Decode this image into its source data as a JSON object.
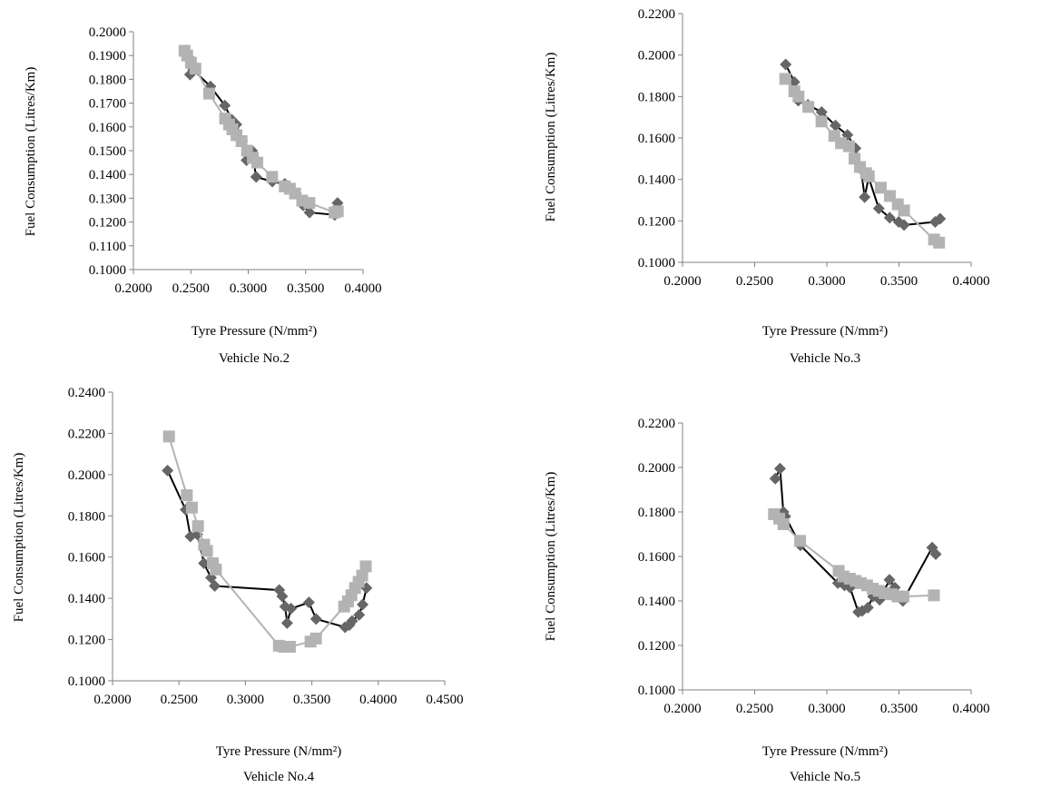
{
  "colors": {
    "series_observed": "#666666",
    "series_observed_line": "#000000",
    "series_fitted": "#b3b3b3",
    "axis": "#808080"
  },
  "chart_data": [
    {
      "type": "scatter",
      "title": "Vehicle No.2",
      "xlabel": "Tyre Pressure (N/mm²)",
      "ylabel": "Fuel Consumption (Litres/Km)",
      "xlim": [
        0.2,
        0.4
      ],
      "ylim": [
        0.1,
        0.2
      ],
      "x_ticks": [
        "0.2000",
        "0.2500",
        "0.3000",
        "0.3500",
        "0.4000"
      ],
      "y_ticks": [
        "0.1000",
        "0.1100",
        "0.1200",
        "0.1300",
        "0.1400",
        "0.1500",
        "0.1600",
        "0.1700",
        "0.1800",
        "0.1900",
        "0.2000"
      ],
      "grid": false,
      "series": [
        {
          "marker": "diamond",
          "x": [
            0.2448,
            0.2478,
            0.2493,
            0.2521,
            0.2671,
            0.2796,
            0.2857,
            0.2897,
            0.2947,
            0.2985,
            0.3033,
            0.3069,
            0.321,
            0.3318,
            0.3415,
            0.3479,
            0.3534,
            0.3754,
            0.3778
          ],
          "y": [
            0.192,
            0.1895,
            0.182,
            0.184,
            0.177,
            0.169,
            0.163,
            0.161,
            0.154,
            0.146,
            0.15,
            0.139,
            0.137,
            0.136,
            0.132,
            0.127,
            0.124,
            0.123,
            0.128
          ]
        },
        {
          "marker": "square",
          "x": [
            0.2445,
            0.2468,
            0.2501,
            0.254,
            0.266,
            0.2799,
            0.2833,
            0.2862,
            0.2898,
            0.2942,
            0.299,
            0.304,
            0.3079,
            0.3208,
            0.3318,
            0.3363,
            0.3408,
            0.347,
            0.3533,
            0.3752,
            0.378
          ],
          "y": [
            0.192,
            0.19,
            0.187,
            0.1845,
            0.174,
            0.1635,
            0.161,
            0.159,
            0.1565,
            0.154,
            0.15,
            0.147,
            0.145,
            0.139,
            0.135,
            0.134,
            0.132,
            0.129,
            0.128,
            0.124,
            0.1245
          ]
        }
      ]
    },
    {
      "type": "scatter",
      "title": "Vehicle No.3",
      "xlabel": "Tyre Pressure (N/mm²)",
      "ylabel": "Fuel Consumption (Litres/Km)",
      "xlim": [
        0.2,
        0.4
      ],
      "ylim": [
        0.1,
        0.22
      ],
      "x_ticks": [
        "0.2000",
        "0.2500",
        "0.3000",
        "0.3500",
        "0.4000"
      ],
      "y_ticks": [
        "0.1000",
        "0.1200",
        "0.1400",
        "0.1600",
        "0.1800",
        "0.2000",
        "0.2200"
      ],
      "grid": false,
      "series": [
        {
          "marker": "diamond",
          "x": [
            0.2715,
            0.2775,
            0.2802,
            0.2869,
            0.2964,
            0.306,
            0.3143,
            0.3199,
            0.3237,
            0.3262,
            0.329,
            0.336,
            0.3436,
            0.3498,
            0.3535,
            0.3751,
            0.3785
          ],
          "y": [
            0.1955,
            0.187,
            0.178,
            0.176,
            0.1725,
            0.166,
            0.1615,
            0.155,
            0.145,
            0.1315,
            0.141,
            0.126,
            0.1215,
            0.1195,
            0.118,
            0.1195,
            0.121
          ]
        },
        {
          "marker": "square",
          "x": [
            0.2712,
            0.2775,
            0.2804,
            0.2872,
            0.2963,
            0.3052,
            0.3098,
            0.3153,
            0.3192,
            0.323,
            0.3272,
            0.3291,
            0.3374,
            0.3437,
            0.3492,
            0.3535,
            0.3743,
            0.3778
          ],
          "y": [
            0.1885,
            0.1825,
            0.18,
            0.175,
            0.168,
            0.161,
            0.1575,
            0.156,
            0.15,
            0.146,
            0.143,
            0.1415,
            0.136,
            0.132,
            0.128,
            0.125,
            0.111,
            0.1095
          ]
        }
      ]
    },
    {
      "type": "scatter",
      "title": "Vehicle No.4",
      "xlabel": "Tyre Pressure (N/mm²)",
      "ylabel": "Fuel Consumption (Litres/Km)",
      "xlim": [
        0.2,
        0.45
      ],
      "ylim": [
        0.1,
        0.24
      ],
      "x_ticks": [
        "0.2000",
        "0.2500",
        "0.3000",
        "0.3500",
        "0.4000",
        "0.4500"
      ],
      "y_ticks": [
        "0.1000",
        "0.1200",
        "0.1400",
        "0.1600",
        "0.1800",
        "0.2000",
        "0.2200",
        "0.2400"
      ],
      "grid": false,
      "series": [
        {
          "marker": "diamond",
          "x": [
            0.2414,
            0.255,
            0.2586,
            0.2638,
            0.2688,
            0.2741,
            0.2769,
            0.3255,
            0.3277,
            0.3299,
            0.3314,
            0.3343,
            0.3478,
            0.3532,
            0.375,
            0.3782,
            0.3803,
            0.3856,
            0.3882,
            0.3911
          ],
          "y": [
            0.202,
            0.183,
            0.17,
            0.171,
            0.157,
            0.15,
            0.146,
            0.144,
            0.141,
            0.136,
            0.128,
            0.135,
            0.138,
            0.13,
            0.126,
            0.127,
            0.129,
            0.132,
            0.137,
            0.145
          ]
        },
        {
          "marker": "square",
          "x": [
            0.2425,
            0.2559,
            0.2597,
            0.2643,
            0.2689,
            0.2711,
            0.2755,
            0.2778,
            0.3252,
            0.3291,
            0.3335,
            0.349,
            0.3531,
            0.3743,
            0.3772,
            0.3798,
            0.3825,
            0.3852,
            0.3879,
            0.3906
          ],
          "y": [
            0.2185,
            0.19,
            0.184,
            0.175,
            0.166,
            0.163,
            0.157,
            0.154,
            0.117,
            0.1165,
            0.1165,
            0.119,
            0.1205,
            0.136,
            0.1385,
            0.1415,
            0.145,
            0.148,
            0.151,
            0.1555
          ]
        }
      ]
    },
    {
      "type": "scatter",
      "title": "Vehicle No.5",
      "xlabel": "Tyre Pressure (N/mm²)",
      "ylabel": "Fuel Consumption (Litres/Km)",
      "xlim": [
        0.2,
        0.4
      ],
      "ylim": [
        0.1,
        0.22
      ],
      "x_ticks": [
        "0.2000",
        "0.2500",
        "0.3000",
        "0.3500",
        "0.4000"
      ],
      "y_ticks": [
        "0.1000",
        "0.1200",
        "0.1400",
        "0.1600",
        "0.1800",
        "0.2000",
        "0.2200"
      ],
      "grid": false,
      "series": [
        {
          "marker": "diamond",
          "x": [
            0.2643,
            0.2676,
            0.2699,
            0.2712,
            0.2817,
            0.3077,
            0.3122,
            0.3161,
            0.3218,
            0.3245,
            0.3285,
            0.332,
            0.3366,
            0.3434,
            0.3471,
            0.3527,
            0.373,
            0.3755
          ],
          "y": [
            0.195,
            0.1995,
            0.18,
            0.178,
            0.165,
            0.148,
            0.147,
            0.146,
            0.135,
            0.1355,
            0.137,
            0.142,
            0.1405,
            0.1495,
            0.146,
            0.14,
            0.164,
            0.161
          ]
        },
        {
          "marker": "square",
          "x": [
            0.2634,
            0.267,
            0.27,
            0.2815,
            0.3082,
            0.3115,
            0.316,
            0.32,
            0.3236,
            0.3279,
            0.3318,
            0.336,
            0.34,
            0.3449,
            0.349,
            0.3531,
            0.3742
          ],
          "y": [
            0.179,
            0.177,
            0.1745,
            0.167,
            0.1535,
            0.151,
            0.15,
            0.149,
            0.148,
            0.147,
            0.1455,
            0.1445,
            0.1435,
            0.143,
            0.142,
            0.142,
            0.1425
          ]
        }
      ]
    }
  ]
}
